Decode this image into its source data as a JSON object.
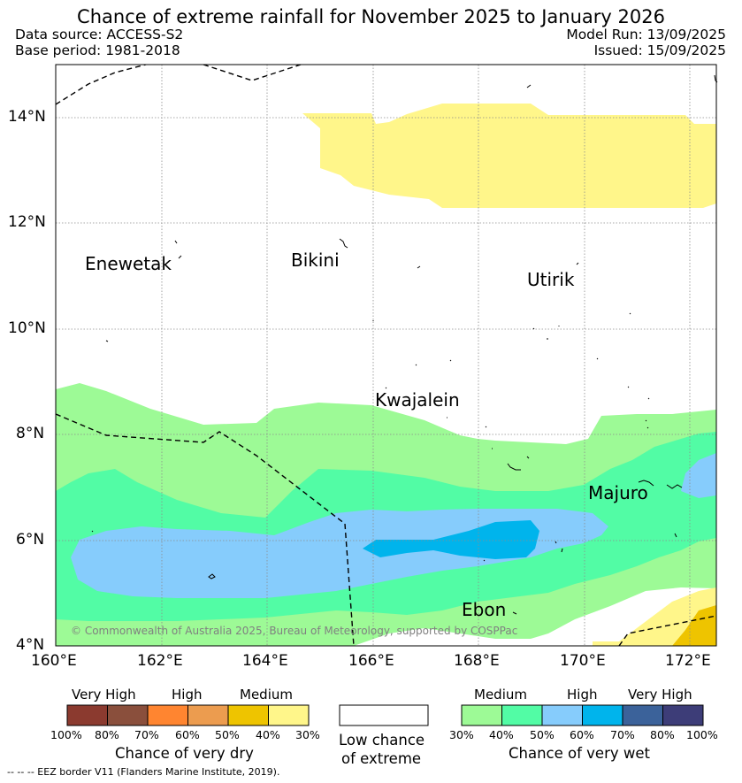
{
  "header": {
    "title": "Chance of extreme rainfall for November 2025 to January 2026",
    "data_source": "Data source: ACCESS-S2",
    "base_period": "Base period: 1981-2018",
    "model_run": "Model Run: 13/09/2025",
    "issued": "Issued: 15/09/2025"
  },
  "map": {
    "lon_ticks": [
      "160°E",
      "162°E",
      "164°E",
      "166°E",
      "168°E",
      "170°E",
      "172°E"
    ],
    "lat_ticks": [
      "4°N",
      "6°N",
      "8°N",
      "10°N",
      "12°N",
      "14°N"
    ],
    "extent": {
      "lon": [
        160,
        172.5
      ],
      "lat": [
        4,
        15
      ]
    },
    "places": [
      {
        "name": "Enewetak",
        "lon": 162.3,
        "lat": 11.3
      },
      {
        "name": "Bikini",
        "lon": 165.5,
        "lat": 11.6
      },
      {
        "name": "Utirik",
        "lon": 169.8,
        "lat": 11.2
      },
      {
        "name": "Kwajalein",
        "lon": 167.7,
        "lat": 8.8
      },
      {
        "name": "Majuro",
        "lon": 171.2,
        "lat": 7.1
      },
      {
        "name": "Ebon",
        "lon": 168.6,
        "lat": 4.6
      }
    ],
    "copyright": "© Commonwealth of Australia 2025, Bureau of Meteorology, supported by COSPPac",
    "land_color": "#ffffff",
    "gridlines": true
  },
  "legend": {
    "dry": {
      "categories": [
        "Very High",
        "High",
        "Medium"
      ],
      "colors": [
        "#8b3a2f",
        "#8a4f3c",
        "#ff8530",
        "#ec9c4f",
        "#eec400",
        "#fff68a"
      ],
      "ticks": [
        "100%",
        "80%",
        "70%",
        "60%",
        "50%",
        "40%",
        "30%"
      ],
      "label": "Chance of very dry"
    },
    "low": {
      "label_line1": "Low chance",
      "label_line2": "of extreme",
      "color": "#ffffff"
    },
    "wet": {
      "categories": [
        "Medium",
        "High",
        "Very High"
      ],
      "colors": [
        "#9dfa96",
        "#52fca5",
        "#86ccfc",
        "#00b4ec",
        "#3b629a",
        "#3d3d78"
      ],
      "ticks": [
        "30%",
        "40%",
        "50%",
        "60%",
        "70%",
        "80%",
        "100%"
      ],
      "label": "Chance of very wet"
    }
  },
  "footer": {
    "eez_note": "--  --  -- EEZ border V11 (Flanders Marine Institute, 2019)."
  }
}
